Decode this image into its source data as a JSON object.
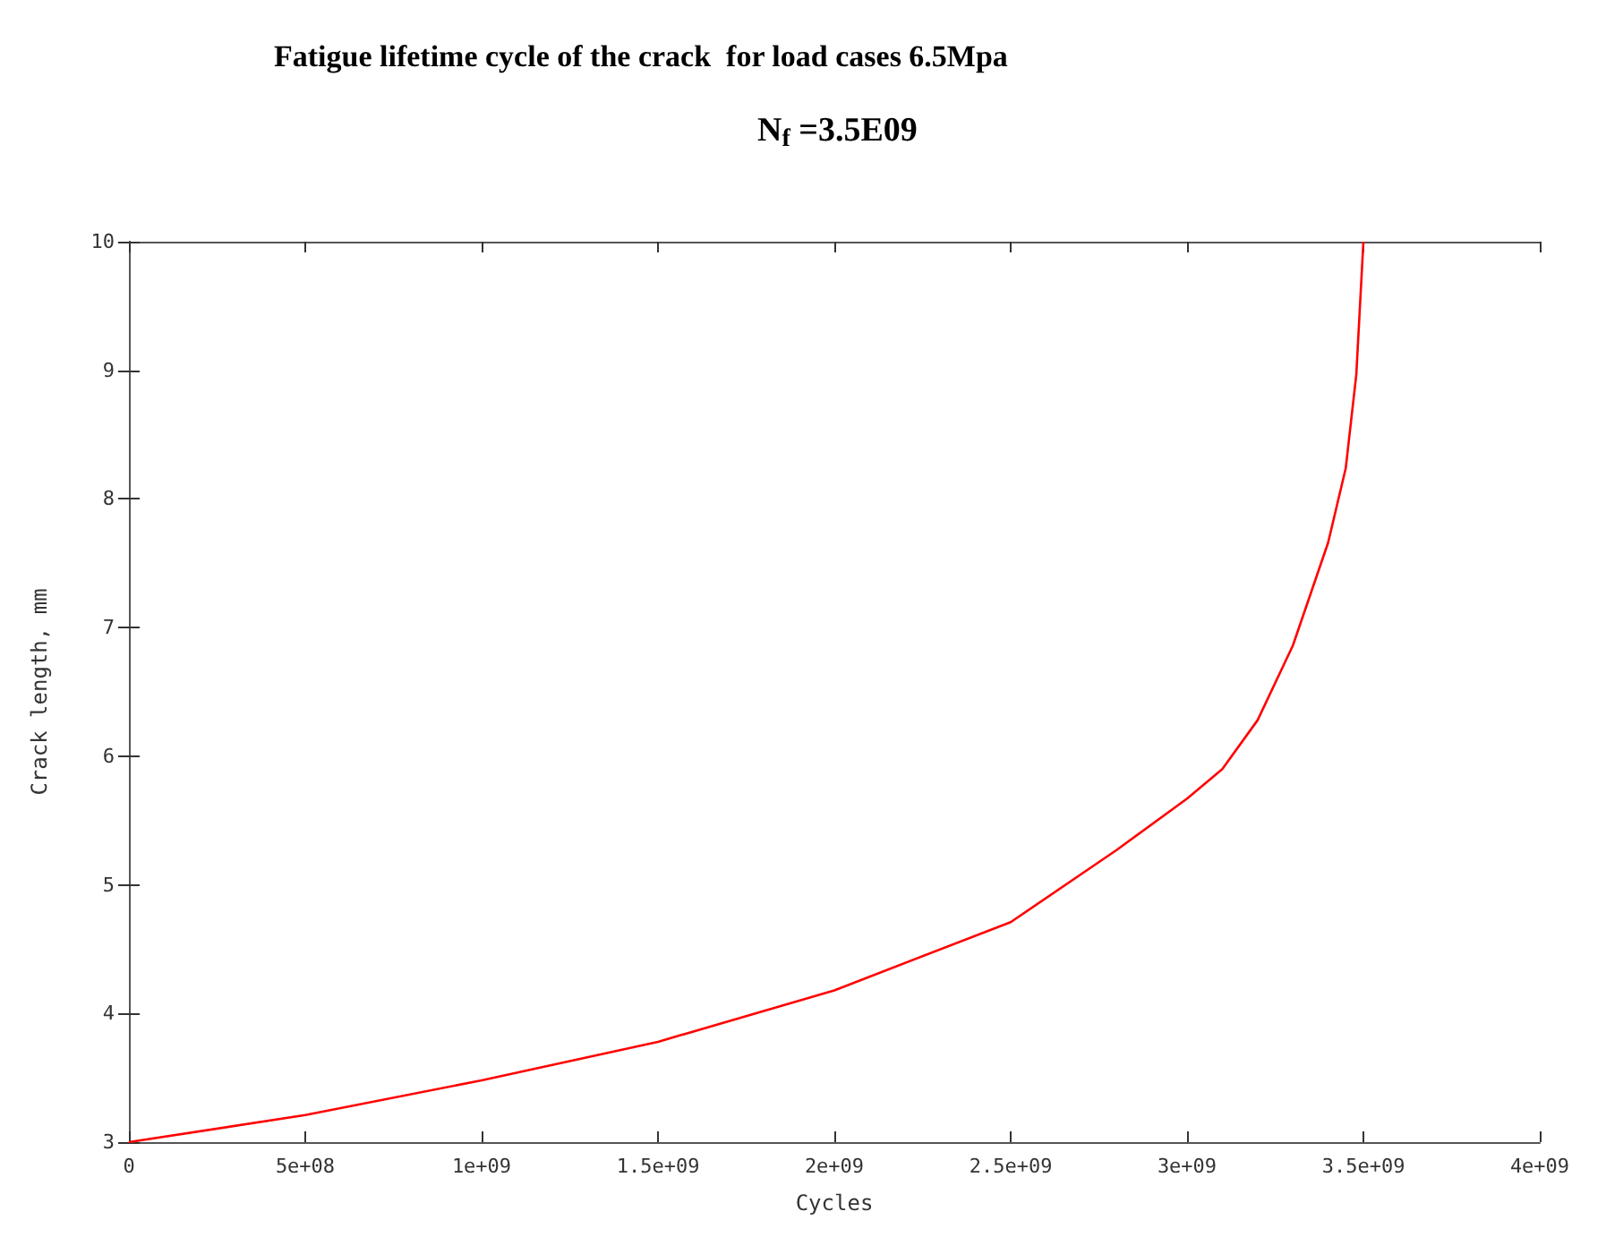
{
  "chart_data": {
    "type": "line",
    "title": "Fatigue lifetime cycle of the crack  for load cases 6.5Mpa",
    "subtitle": "N$_{f}$ =3.5E09",
    "xlabel": "Cycles",
    "ylabel": "Crack length, mm",
    "x": [
      0,
      500000000,
      1000000000,
      1500000000,
      2000000000,
      2500000000,
      2800000000,
      3000000000,
      3100000000,
      3200000000,
      3300000000,
      3400000000,
      3450000000,
      3480000000,
      3500000000
    ],
    "series": [
      {
        "color": "#ff0000",
        "values": [
          3,
          3.21,
          3.48,
          3.78,
          4.18,
          4.71,
          5.27,
          5.67,
          5.9,
          6.28,
          6.86,
          7.66,
          8.24,
          8.97,
          10
        ]
      }
    ],
    "xlim": [
      0,
      4000000000
    ],
    "ylim": [
      3,
      10
    ],
    "xticks": [
      0,
      {
        "value": 500000000,
        "label": "5e+08"
      },
      {
        "value": 1000000000,
        "label": "1e+09"
      },
      {
        "value": 1500000000,
        "label": "1.5e+09"
      },
      {
        "value": 2000000000,
        "label": "2e+09"
      },
      {
        "value": 2500000000,
        "label": "2.5e+09"
      },
      {
        "value": 3000000000,
        "label": "3e+09"
      },
      {
        "value": 3500000000,
        "label": "3.5e+09"
      },
      {
        "value": 4000000000,
        "label": "4e+09"
      }
    ],
    "yticks": [
      3,
      4,
      5,
      6,
      7,
      8,
      9,
      10
    ],
    "grid": false,
    "marker": "none",
    "line_style": "solid"
  }
}
